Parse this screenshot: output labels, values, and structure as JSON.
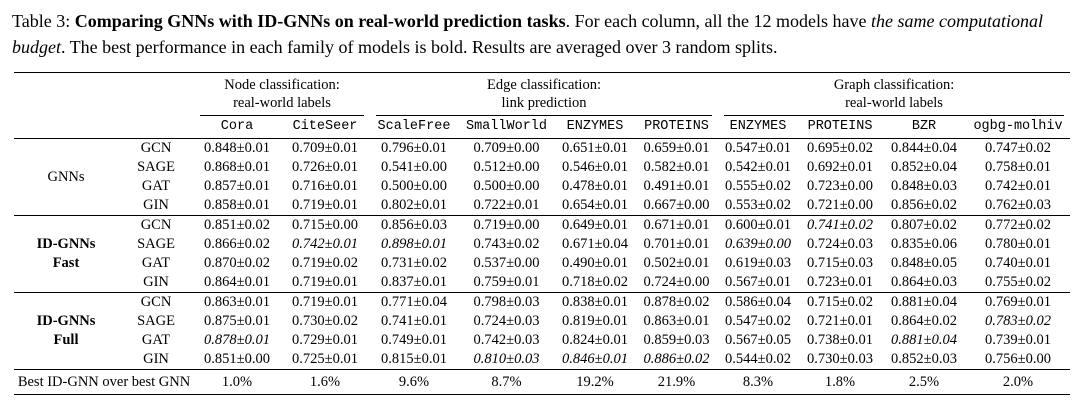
{
  "caption": {
    "segments": [
      {
        "text": "Table 3: ",
        "style": "n"
      },
      {
        "text": "Comparing GNNs with ID-GNNs on real-world prediction tasks",
        "style": "b"
      },
      {
        "text": ". For each column, all the 12 models have ",
        "style": "n"
      },
      {
        "text": "the same computational budget",
        "style": "i"
      },
      {
        "text": ". The best performance in each family of models is bold. Results are averaged over 3 random splits.",
        "style": "n"
      }
    ]
  },
  "table": {
    "groups": [
      {
        "line1": "Node classification:",
        "line2": "real-world labels",
        "span": 2
      },
      {
        "line1": "Edge classification:",
        "line2": "link prediction",
        "span": 4
      },
      {
        "line1": "Graph classification:",
        "line2": "real-world labels",
        "span": 4
      }
    ],
    "columns": [
      "Cora",
      "CiteSeer",
      "ScaleFree",
      "SmallWorld",
      "ENZYMES",
      "PROTEINS",
      "ENZYMES",
      "PROTEINS",
      "BZR",
      "ogbg-molhiv"
    ],
    "families": [
      {
        "label_lines": [
          "GNNs"
        ],
        "label_bold": false,
        "rows": [
          {
            "model": "GCN",
            "values": [
              "0.848±0.01",
              "0.709±0.01",
              "0.796±0.01",
              "0.709±0.00",
              "0.651±0.01",
              "0.659±0.01",
              "0.547±0.01",
              "0.695±0.02",
              "0.844±0.04",
              "0.747±0.02"
            ],
            "styles": [
              "n",
              "n",
              "n",
              "n",
              "n",
              "n",
              "n",
              "n",
              "n",
              "n"
            ]
          },
          {
            "model": "SAGE",
            "values": [
              "0.868±0.01",
              "0.726±0.01",
              "0.541±0.00",
              "0.512±0.00",
              "0.546±0.01",
              "0.582±0.01",
              "0.542±0.01",
              "0.692±0.01",
              "0.852±0.04",
              "0.758±0.01"
            ],
            "styles": [
              "b",
              "b",
              "n",
              "n",
              "n",
              "n",
              "n",
              "n",
              "n",
              "n"
            ]
          },
          {
            "model": "GAT",
            "values": [
              "0.857±0.01",
              "0.716±0.01",
              "0.500±0.00",
              "0.500±0.00",
              "0.478±0.01",
              "0.491±0.01",
              "0.555±0.02",
              "0.723±0.00",
              "0.848±0.03",
              "0.742±0.01"
            ],
            "styles": [
              "n",
              "n",
              "n",
              "n",
              "n",
              "n",
              "b",
              "b",
              "n",
              "n"
            ]
          },
          {
            "model": "GIN",
            "values": [
              "0.858±0.01",
              "0.719±0.01",
              "0.802±0.01",
              "0.722±0.01",
              "0.654±0.01",
              "0.667±0.00",
              "0.553±0.02",
              "0.721±0.00",
              "0.856±0.02",
              "0.762±0.03"
            ],
            "styles": [
              "n",
              "n",
              "b",
              "b",
              "b",
              "b",
              "n",
              "n",
              "b",
              "b"
            ]
          }
        ]
      },
      {
        "label_lines": [
          "ID-GNNs",
          "Fast"
        ],
        "label_bold": true,
        "rows": [
          {
            "model": "GCN",
            "values": [
              "0.851±0.02",
              "0.715±0.00",
              "0.856±0.03",
              "0.719±0.00",
              "0.649±0.01",
              "0.671±0.01",
              "0.600±0.01",
              "0.741±0.02",
              "0.807±0.02",
              "0.772±0.02"
            ],
            "styles": [
              "n",
              "n",
              "n",
              "n",
              "n",
              "n",
              "n",
              "bi",
              "n",
              "n"
            ]
          },
          {
            "model": "SAGE",
            "values": [
              "0.866±0.02",
              "0.742±0.01",
              "0.898±0.01",
              "0.743±0.02",
              "0.671±0.04",
              "0.701±0.01",
              "0.639±0.00",
              "0.724±0.03",
              "0.835±0.06",
              "0.780±0.01"
            ],
            "styles": [
              "n",
              "bi",
              "bi",
              "n",
              "n",
              "n",
              "bi",
              "n",
              "n",
              "b"
            ]
          },
          {
            "model": "GAT",
            "values": [
              "0.870±0.02",
              "0.719±0.02",
              "0.731±0.02",
              "0.537±0.00",
              "0.490±0.01",
              "0.502±0.01",
              "0.619±0.03",
              "0.715±0.03",
              "0.848±0.05",
              "0.740±0.01"
            ],
            "styles": [
              "b",
              "n",
              "n",
              "n",
              "n",
              "n",
              "n",
              "n",
              "n",
              "n"
            ]
          },
          {
            "model": "GIN",
            "values": [
              "0.864±0.01",
              "0.719±0.01",
              "0.837±0.01",
              "0.759±0.01",
              "0.718±0.02",
              "0.724±0.00",
              "0.567±0.01",
              "0.723±0.01",
              "0.864±0.03",
              "0.755±0.02"
            ],
            "styles": [
              "n",
              "n",
              "n",
              "b",
              "b",
              "b",
              "n",
              "n",
              "b",
              "n"
            ]
          }
        ]
      },
      {
        "label_lines": [
          "ID-GNNs",
          "Full"
        ],
        "label_bold": true,
        "rows": [
          {
            "model": "GCN",
            "values": [
              "0.863±0.01",
              "0.719±0.01",
              "0.771±0.04",
              "0.798±0.03",
              "0.838±0.01",
              "0.878±0.02",
              "0.586±0.04",
              "0.715±0.02",
              "0.881±0.04",
              "0.769±0.01"
            ],
            "styles": [
              "n",
              "n",
              "n",
              "n",
              "n",
              "n",
              "b",
              "n",
              "n",
              "n"
            ]
          },
          {
            "model": "SAGE",
            "values": [
              "0.875±0.01",
              "0.730±0.02",
              "0.741±0.01",
              "0.724±0.03",
              "0.819±0.01",
              "0.863±0.01",
              "0.547±0.02",
              "0.721±0.01",
              "0.864±0.02",
              "0.783±0.02"
            ],
            "styles": [
              "n",
              "b",
              "n",
              "n",
              "n",
              "n",
              "n",
              "n",
              "n",
              "bi"
            ]
          },
          {
            "model": "GAT",
            "values": [
              "0.878±0.01",
              "0.729±0.01",
              "0.749±0.01",
              "0.742±0.03",
              "0.824±0.01",
              "0.859±0.03",
              "0.567±0.05",
              "0.738±0.01",
              "0.881±0.04",
              "0.739±0.01"
            ],
            "styles": [
              "bi",
              "n",
              "n",
              "n",
              "n",
              "n",
              "n",
              "b",
              "bi",
              "n"
            ]
          },
          {
            "model": "GIN",
            "values": [
              "0.851±0.00",
              "0.725±0.01",
              "0.815±0.01",
              "0.810±0.03",
              "0.846±0.01",
              "0.886±0.02",
              "0.544±0.02",
              "0.730±0.03",
              "0.852±0.03",
              "0.756±0.00"
            ],
            "styles": [
              "n",
              "n",
              "b",
              "bi",
              "bi",
              "bi",
              "n",
              "n",
              "n",
              "n"
            ]
          }
        ]
      }
    ],
    "footer": {
      "label": "Best ID-GNN over best GNN",
      "values": [
        "1.0%",
        "1.6%",
        "9.6%",
        "8.7%",
        "19.2%",
        "21.9%",
        "8.3%",
        "1.8%",
        "2.5%",
        "2.0%"
      ]
    }
  }
}
